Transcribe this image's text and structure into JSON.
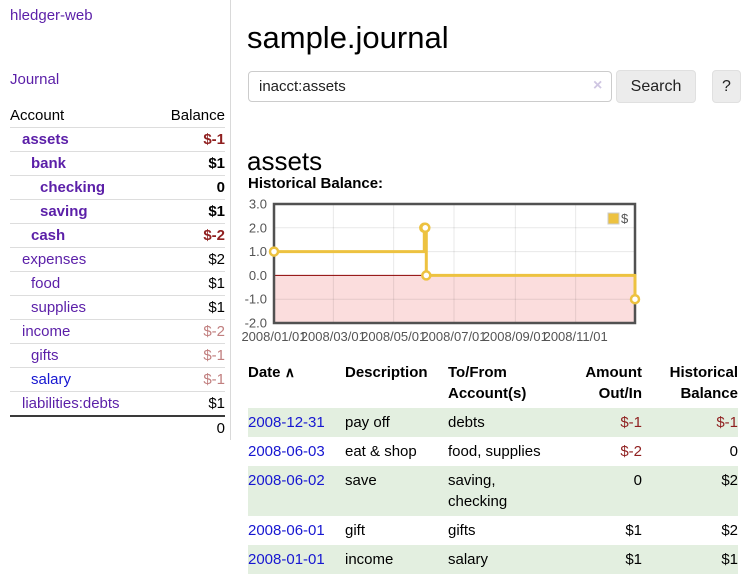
{
  "app": {
    "title": "hledger-web"
  },
  "sidebar": {
    "journal_link": "Journal",
    "accounts_table": {
      "headers": {
        "account": "Account",
        "balance": "Balance"
      },
      "rows": [
        {
          "label": "assets",
          "indent": 1,
          "bold": true,
          "balance": "$-1",
          "balance_class": "neg"
        },
        {
          "label": "bank",
          "indent": 2,
          "bold": true,
          "balance": "$1",
          "balance_class": ""
        },
        {
          "label": "checking",
          "indent": 3,
          "bold": true,
          "balance": "0",
          "balance_class": ""
        },
        {
          "label": "saving",
          "indent": 3,
          "bold": true,
          "balance": "$1",
          "balance_class": ""
        },
        {
          "label": "cash",
          "indent": 2,
          "bold": true,
          "balance": "$-2",
          "balance_class": "neg"
        },
        {
          "label": "expenses",
          "indent": 1,
          "bold": false,
          "balance": "$2",
          "balance_class": ""
        },
        {
          "label": "food",
          "indent": 2,
          "bold": false,
          "balance": "$1",
          "balance_class": ""
        },
        {
          "label": "supplies",
          "indent": 2,
          "bold": false,
          "balance": "$1",
          "balance_class": ""
        },
        {
          "label": "income",
          "indent": 1,
          "bold": false,
          "balance": "$-2",
          "balance_class": "neg-dim"
        },
        {
          "label": "gifts",
          "indent": 2,
          "bold": false,
          "balance": "$-1",
          "balance_class": "neg-dim"
        },
        {
          "label": "salary",
          "indent": 2,
          "bold": false,
          "balance": "$-1",
          "balance_class": "neg-dim",
          "link": "blue"
        },
        {
          "label": "liabilities:debts",
          "indent": 1,
          "bold": false,
          "balance": "$1",
          "balance_class": ""
        }
      ],
      "total": "0"
    }
  },
  "main": {
    "title": "sample.journal",
    "search": {
      "value": "inacct:assets",
      "clear_icon": "×",
      "button_label": "Search",
      "help_label": "?"
    },
    "account_heading": "assets",
    "chart_heading": "Historical Balance:",
    "register": {
      "headers": {
        "date": "Date",
        "sort_icon": "∧",
        "description": "Description",
        "account_line1": "To/From",
        "account_line2": "Account(s)",
        "amount_line1": "Amount",
        "amount_line2": "Out/In",
        "balance_line1": "Historical",
        "balance_line2": "Balance"
      },
      "rows": [
        {
          "date": "2008-12-31",
          "description": "pay off",
          "accounts": [
            "debts"
          ],
          "amount": "$-1",
          "amount_class": "neg",
          "balance": "$-1",
          "balance_class": "neg",
          "shaded": true
        },
        {
          "date": "2008-06-03",
          "description": "eat & shop",
          "accounts": [
            "food, supplies"
          ],
          "amount": "$-2",
          "amount_class": "neg",
          "balance": "0",
          "balance_class": "",
          "shaded": false
        },
        {
          "date": "2008-06-02",
          "description": "save",
          "accounts": [
            "saving,",
            "checking"
          ],
          "amount": "0",
          "amount_class": "",
          "balance": "$2",
          "balance_class": "",
          "shaded": true
        },
        {
          "date": "2008-06-01",
          "description": "gift",
          "accounts": [
            "gifts"
          ],
          "amount": "$1",
          "amount_class": "",
          "balance": "$2",
          "balance_class": "",
          "shaded": false
        },
        {
          "date": "2008-01-01",
          "description": "income",
          "accounts": [
            "salary"
          ],
          "amount": "$1",
          "amount_class": "",
          "balance": "$1",
          "balance_class": "",
          "shaded": true
        }
      ]
    }
  },
  "colors": {
    "link_purple": "#5b1fa8",
    "link_blue": "#1717d1",
    "negative_red": "#8f1f1f",
    "negative_dim_red": "#c17f7f",
    "row_stripe_green": "#e3efe0",
    "chart_series_yellow": "#edc240",
    "chart_negative_region_pink": "#fbdddd",
    "chart_zero_line_red": "#8b0000",
    "chart_border_gray": "#515151"
  },
  "chart_data": {
    "type": "line",
    "title": "Historical Balance",
    "step": true,
    "series": [
      {
        "name": "$",
        "color": "#edc240",
        "points": [
          [
            "2008-01-01",
            1
          ],
          [
            "2008-06-01",
            2
          ],
          [
            "2008-06-02",
            2
          ],
          [
            "2008-06-03",
            0
          ],
          [
            "2008-12-31",
            -1
          ]
        ]
      }
    ],
    "xlim": [
      "2008-01-01",
      "2008-12-31"
    ],
    "ylim": [
      -2,
      3
    ],
    "x_ticks": [
      "2008/01/01",
      "2008/03/01",
      "2008/05/01",
      "2008/07/01",
      "2008/09/01",
      "2008/11/01"
    ],
    "y_ticks": [
      3.0,
      2.0,
      1.0,
      0.0,
      -1.0,
      -2.0
    ],
    "grid": true,
    "legend": {
      "label": "$",
      "position": "top-right"
    },
    "negative_region_shaded": true
  }
}
